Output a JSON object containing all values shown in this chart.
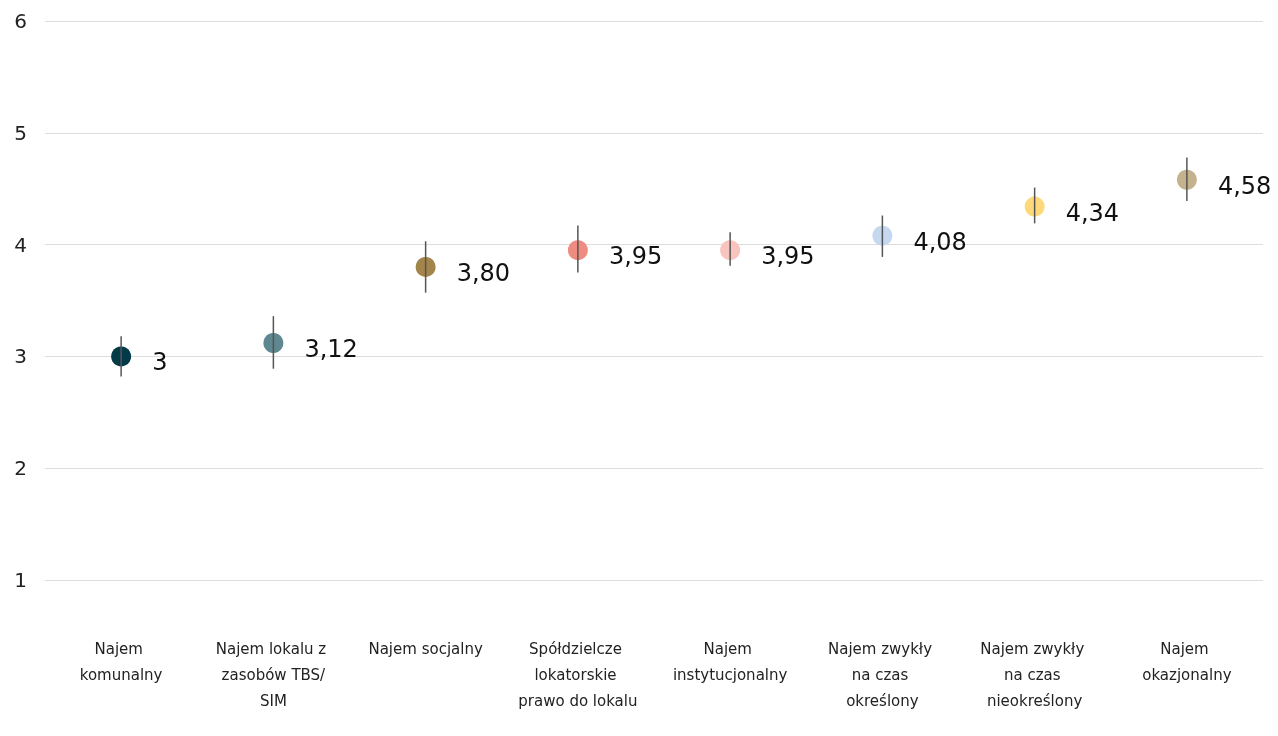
{
  "chart_data": {
    "type": "scatter",
    "categories": [
      "Najem komunalny",
      "Najem lokalu z zasobów TBS/SIM",
      "Najem socjalny",
      "Spółdzielcze lokatorskie prawo do lokalu",
      "Najem instytucjonalny",
      "Najem zwykły na czas określony",
      "Najem zwykły na czas nieokreślony",
      "Najem okazjonalny"
    ],
    "values": [
      3,
      3.12,
      3.8,
      3.95,
      3.95,
      4.08,
      4.34,
      4.58
    ],
    "value_labels": [
      "3",
      "3,12",
      "3,80",
      "3,95",
      "3,95",
      "4,08",
      "4,34",
      "4,58"
    ],
    "errors": [
      [
        2.82,
        3.18
      ],
      [
        2.89,
        3.36
      ],
      [
        3.57,
        4.03
      ],
      [
        3.75,
        4.17
      ],
      [
        3.81,
        4.11
      ],
      [
        3.89,
        4.26
      ],
      [
        4.19,
        4.51
      ],
      [
        4.39,
        4.78
      ]
    ],
    "colors": [
      "#033a47",
      "#5e8790",
      "#a3854c",
      "#ef8c82",
      "#f8c4bd",
      "#c5d8f0",
      "#fdd97a",
      "#c4b28c"
    ],
    "ylim": [
      1,
      6
    ],
    "yticks": [
      1,
      2,
      3,
      4,
      5,
      6
    ],
    "grid": "y",
    "marker": "circle"
  }
}
